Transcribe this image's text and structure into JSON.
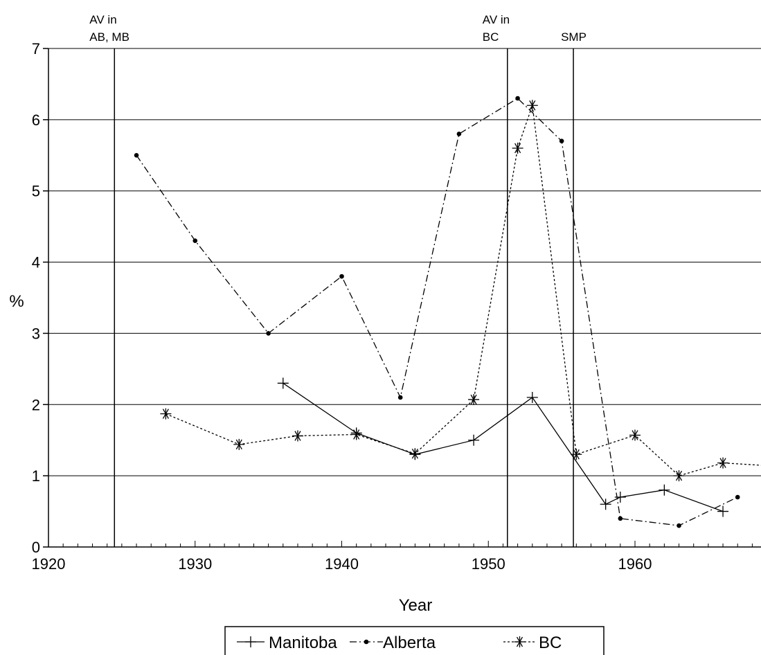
{
  "chart_data": {
    "type": "line",
    "title": "",
    "xlabel": "Year",
    "ylabel": "%",
    "xlim": [
      1920,
      1970
    ],
    "ylim": [
      0,
      7
    ],
    "x_ticks": [
      "1920",
      "1930",
      "1940",
      "1950",
      "1960"
    ],
    "y_ticks": [
      "0",
      "1",
      "2",
      "3",
      "4",
      "5",
      "6",
      "7"
    ],
    "grid": "horizontal",
    "legend_position": "bottom",
    "series": [
      {
        "name": "Manitoba",
        "marker": "plus",
        "line": "solid",
        "x": [
          1936,
          1941,
          1945,
          1949,
          1953,
          1958,
          1959,
          1962,
          1966
        ],
        "y": [
          2.3,
          1.6,
          1.3,
          1.5,
          2.1,
          0.6,
          0.7,
          0.8,
          0.5
        ]
      },
      {
        "name": "Alberta",
        "marker": "dot",
        "line": "dashdot",
        "x": [
          1926,
          1930,
          1935,
          1940,
          1944,
          1948,
          1952,
          1955,
          1959,
          1963,
          1967
        ],
        "y": [
          5.5,
          4.3,
          3.0,
          3.8,
          2.1,
          5.8,
          6.3,
          5.7,
          0.4,
          0.3,
          0.7
        ]
      },
      {
        "name": "BC",
        "marker": "star",
        "line": "dotted",
        "x": [
          1928,
          1933,
          1937,
          1941,
          1945,
          1949,
          1952,
          1953,
          1956,
          1960,
          1963,
          1966,
          1970
        ],
        "y": [
          1.87,
          1.44,
          1.56,
          1.58,
          1.31,
          2.07,
          5.6,
          6.2,
          1.3,
          1.57,
          1.0,
          1.18,
          1.13
        ]
      }
    ],
    "annotations": [
      {
        "x": 1924.5,
        "lines": [
          "AV in",
          "AB, MB"
        ]
      },
      {
        "x": 1951.3,
        "lines": [
          "AV in",
          "BC"
        ]
      },
      {
        "x": 1955.8,
        "lines": [
          "SMP"
        ]
      }
    ]
  }
}
